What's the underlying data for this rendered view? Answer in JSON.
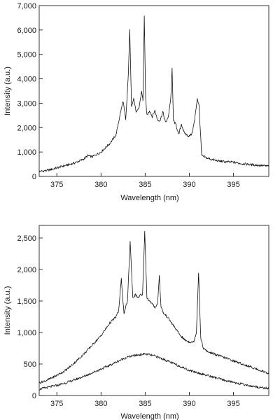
{
  "chart_data": [
    {
      "type": "line",
      "title": "",
      "xlabel": "Wavelength (nm)",
      "ylabel": "Intensity (a.u.)",
      "xlim": [
        373,
        399
      ],
      "ylim": [
        0,
        7000
      ],
      "x_ticks": [
        375,
        380,
        385,
        390,
        395
      ],
      "x_tick_labels": [
        "375",
        "380",
        "385",
        "390",
        "395"
      ],
      "y_ticks": [
        0,
        1000,
        2000,
        3000,
        4000,
        5000,
        6000,
        7000
      ],
      "y_tick_labels": [
        "0",
        "1,000",
        "2,000",
        "3,000",
        "4,000",
        "5,000",
        "6,000",
        "7,000"
      ],
      "grid": false,
      "series": [
        {
          "x": [
            373,
            374,
            375,
            376,
            377,
            378,
            378.5,
            379,
            380,
            381,
            381.7,
            382.2,
            382.5,
            382.8,
            383.1,
            383.25,
            383.45,
            383.7,
            384.0,
            384.3,
            384.6,
            384.75,
            384.9,
            385.05,
            385.2,
            385.5,
            385.8,
            386.1,
            386.4,
            386.7,
            387.0,
            387.3,
            387.6,
            387.9,
            388.05,
            388.2,
            388.5,
            388.8,
            389.1,
            389.4,
            389.7,
            390.0,
            390.3,
            390.6,
            390.9,
            391.1,
            391.4,
            392,
            393,
            394,
            395,
            396,
            397,
            398,
            399
          ],
          "y": [
            200,
            250,
            350,
            450,
            550,
            700,
            850,
            800,
            1000,
            1350,
            1700,
            2600,
            3100,
            2300,
            4200,
            6050,
            2900,
            3200,
            2600,
            2800,
            3500,
            3100,
            6600,
            3200,
            2500,
            2700,
            2450,
            2700,
            2300,
            2300,
            2650,
            2200,
            2400,
            3200,
            4400,
            2300,
            2100,
            1700,
            2150,
            1800,
            1700,
            1650,
            1750,
            2300,
            3200,
            2900,
            850,
            750,
            650,
            600,
            580,
            520,
            480,
            450,
            420
          ]
        }
      ]
    },
    {
      "type": "line",
      "title": "",
      "xlabel": "Wavelength (nm)",
      "ylabel": "Intensity (a.u.)",
      "xlim": [
        373,
        399
      ],
      "ylim": [
        0,
        2700
      ],
      "x_ticks": [
        375,
        380,
        385,
        390,
        395
      ],
      "x_tick_labels": [
        "375",
        "380",
        "385",
        "390",
        "395"
      ],
      "y_ticks": [
        0,
        500,
        1000,
        1500,
        2000,
        2500
      ],
      "y_tick_labels": [
        "0",
        "500",
        "1,000",
        "1,500",
        "2,000",
        "2,500"
      ],
      "grid": false,
      "series": [
        {
          "x": [
            373,
            374,
            375,
            376,
            377,
            378,
            379,
            380,
            381,
            381.7,
            382.0,
            382.3,
            382.6,
            383.0,
            383.3,
            383.6,
            383.9,
            384.2,
            384.5,
            384.7,
            384.95,
            385.2,
            385.5,
            385.8,
            386.1,
            386.4,
            386.6,
            386.8,
            387.1,
            387.5,
            388,
            388.5,
            389,
            389.5,
            390,
            390.5,
            390.8,
            391.05,
            391.3,
            391.6,
            392,
            393,
            394,
            395,
            396,
            397,
            398,
            399
          ],
          "y": [
            200,
            250,
            320,
            400,
            520,
            650,
            800,
            950,
            1150,
            1250,
            1350,
            1850,
            1300,
            1500,
            2450,
            1550,
            1600,
            1550,
            1600,
            1580,
            2600,
            1550,
            1500,
            1450,
            1400,
            1450,
            1900,
            1400,
            1300,
            1250,
            1150,
            1050,
            950,
            880,
            850,
            850,
            1000,
            1950,
            900,
            750,
            700,
            650,
            600,
            550,
            500,
            450,
            400,
            350
          ]
        },
        {
          "x": [
            373,
            374,
            375,
            376,
            377,
            378,
            379,
            380,
            381,
            382,
            383,
            384,
            385,
            386,
            387,
            388,
            389,
            390,
            391,
            392,
            393,
            394,
            395,
            396,
            397,
            398,
            399
          ],
          "y": [
            100,
            130,
            160,
            200,
            250,
            300,
            360,
            420,
            480,
            550,
            610,
            640,
            660,
            630,
            580,
            520,
            460,
            400,
            360,
            320,
            280,
            240,
            210,
            180,
            150,
            130,
            110
          ]
        }
      ]
    }
  ]
}
